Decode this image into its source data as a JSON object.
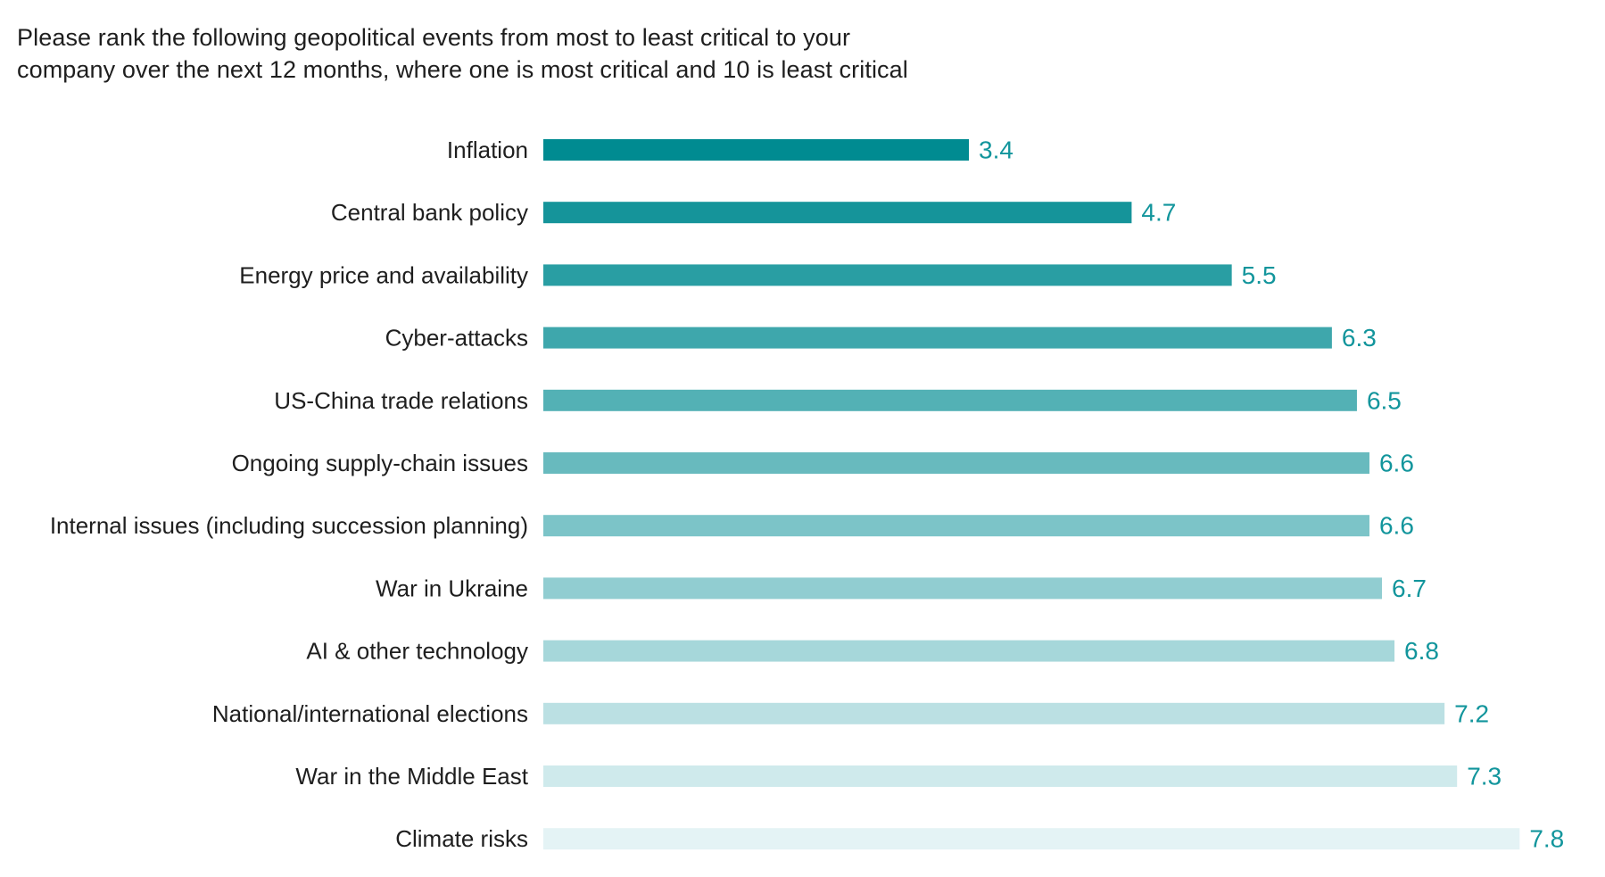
{
  "title_lines": [
    "Please rank the following geopolitical events from most to least critical to your",
    "company over the next 12 months, where one is most critical and 10 is least critical"
  ],
  "chart_data": {
    "type": "bar",
    "orientation": "horizontal",
    "title": "Please rank the following geopolitical events from most to least critical to your company over the next 12 months, where one is most critical and 10 is least critical",
    "categories": [
      "Inflation",
      "Central bank policy",
      "Energy price and availability",
      "Cyber-attacks",
      "US-China trade relations",
      "Ongoing supply-chain issues",
      "Internal issues (including succession planning)",
      "War in Ukraine",
      "AI & other technology",
      "National/international elections",
      "War in the Middle East",
      "Climate risks"
    ],
    "values": [
      3.4,
      4.7,
      5.5,
      6.3,
      6.5,
      6.6,
      6.6,
      6.7,
      6.8,
      7.2,
      7.3,
      7.8
    ],
    "data_labels": [
      "3.4",
      "4.7",
      "5.5",
      "6.3",
      "6.5",
      "6.6",
      "6.6",
      "6.7",
      "6.8",
      "7.2",
      "7.3",
      "7.8"
    ],
    "xlim": [
      0,
      7.8
    ],
    "grid": false,
    "legend": "none",
    "colors": {
      "bar_darkest": "#008b91",
      "bar_lightest": "#e4f3f5",
      "value_label": "#12959c",
      "category_label": "#1e1e1e"
    }
  }
}
